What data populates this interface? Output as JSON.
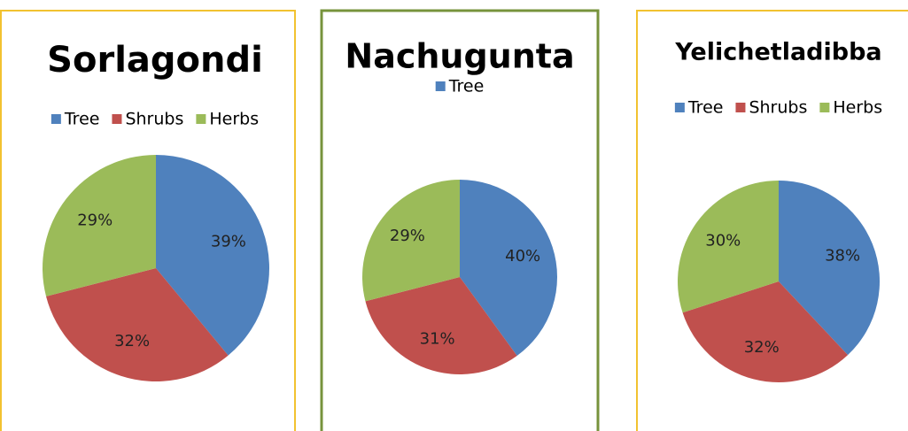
{
  "chart_data": [
    {
      "type": "pie",
      "title": "Sorlagondi",
      "categories": [
        "Tree",
        "Shrubs",
        "Herbs"
      ],
      "values": [
        39,
        32,
        29
      ],
      "value_labels": [
        "39%",
        "32%",
        "29%"
      ],
      "colors": [
        "#4f81bd",
        "#c0504d",
        "#9bbb59"
      ]
    },
    {
      "type": "pie",
      "title": "Nachugunta",
      "categories": [
        "Tree",
        null,
        null
      ],
      "values": [
        40,
        31,
        29
      ],
      "value_labels": [
        "40%",
        "31%",
        "29%"
      ],
      "colors": [
        "#4f81bd",
        "#c0504d",
        "#9bbb59"
      ]
    },
    {
      "type": "pie",
      "title": "Yelichetladibba",
      "categories": [
        "Tree",
        "Shrubs",
        "Herbs"
      ],
      "values": [
        38,
        32,
        30
      ],
      "value_labels": [
        "38%",
        "32%",
        "30%"
      ],
      "colors": [
        "#4f81bd",
        "#c0504d",
        "#9bbb59"
      ]
    }
  ]
}
